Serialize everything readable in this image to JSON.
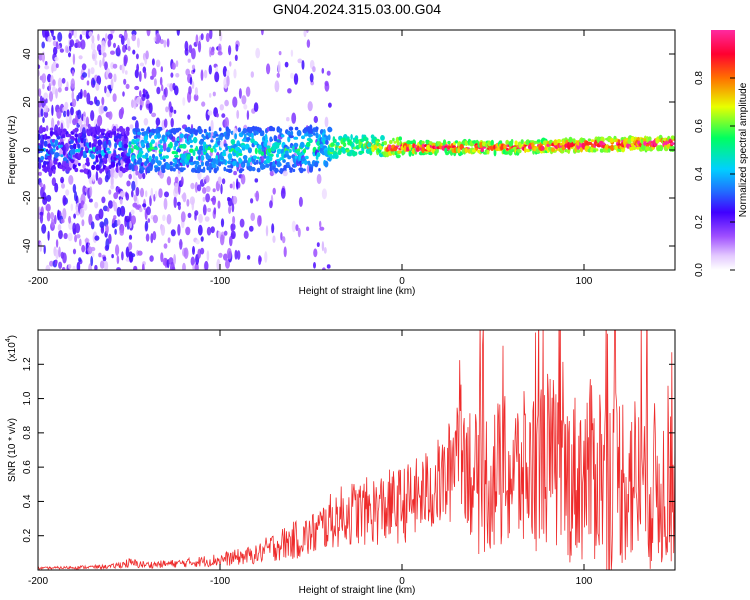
{
  "title": "GN04.2024.315.03.00.G04",
  "colors": {
    "axis": "#000000",
    "snr_line": "#ee2b2b",
    "colormap": [
      "#ffffff",
      "#e8d8ff",
      "#a060ff",
      "#3a00ff",
      "#2060ff",
      "#00c8ff",
      "#00ff80",
      "#f0ff00",
      "#ff6000",
      "#ff0040",
      "#ff2090"
    ]
  },
  "chart_data": [
    {
      "type": "heatmap",
      "name": "spectrogram",
      "xlabel": "Height of straight line (km)",
      "ylabel": "Frequency (Hz)",
      "xlim": [
        -200,
        150
      ],
      "ylim": [
        -50,
        50
      ],
      "xticks": [
        -200,
        -100,
        0,
        100
      ],
      "xtick_labels": [
        "-200",
        "-100",
        "0",
        "100"
      ],
      "yticks": [
        -40,
        -20,
        0,
        20,
        40
      ],
      "ytick_labels": [
        "-40",
        "-20",
        "0",
        "20",
        "40"
      ],
      "colorbar": {
        "label": "Normalized spectral amplitude",
        "range": [
          0,
          1
        ],
        "ticks": [
          0.0,
          0.2,
          0.4,
          0.6,
          0.8
        ],
        "tick_labels": [
          "0.0",
          "0.2",
          "0.4",
          "0.6",
          "0.8"
        ]
      },
      "ridge": {
        "x": [
          -200,
          -150,
          -100,
          -60,
          -40,
          -20,
          0,
          50,
          100,
          150
        ],
        "y": [
          0,
          0,
          0,
          0,
          1,
          2,
          1,
          1,
          2,
          3
        ]
      },
      "grid": false
    },
    {
      "type": "line",
      "name": "snr",
      "xlabel": "Height of straight line (km)",
      "ylabel": "SNR (10 * v/v)",
      "scale_label": "(x10",
      "scale_exp": "4",
      "scale_close": ")",
      "xlim": [
        -200,
        150
      ],
      "ylim": [
        0,
        14000
      ],
      "xticks": [
        -200,
        -100,
        0,
        100
      ],
      "xtick_labels": [
        "-200",
        "-100",
        "0",
        "100"
      ],
      "yticks": [
        2000,
        4000,
        6000,
        8000,
        10000,
        12000
      ],
      "ytick_labels": [
        "0.2",
        "0.4",
        "0.6",
        "0.8",
        "1.0",
        "1.2"
      ],
      "envelope_x": [
        -200,
        -160,
        -150,
        -140,
        -120,
        -100,
        -80,
        -70,
        -60,
        -50,
        -40,
        -30,
        -20,
        -10,
        0,
        10,
        20,
        25,
        28,
        30,
        33,
        36,
        40,
        50,
        60,
        70,
        80,
        90,
        100,
        110,
        115,
        120,
        130,
        140,
        150
      ],
      "envelope_y": [
        100,
        200,
        400,
        300,
        400,
        600,
        900,
        1400,
        1700,
        2000,
        2800,
        3300,
        3400,
        3600,
        3800,
        4300,
        5000,
        5300,
        6500,
        8300,
        7200,
        6500,
        5000,
        5400,
        5600,
        5700,
        6600,
        5300,
        5600,
        6000,
        4800,
        5600,
        5200,
        4800,
        4600
      ],
      "spread_y": [
        60,
        120,
        300,
        200,
        250,
        400,
        550,
        900,
        1100,
        1300,
        1600,
        1900,
        2000,
        2200,
        2300,
        2400,
        2700,
        3000,
        3500,
        3500,
        3600,
        4000,
        4200,
        4500,
        4700,
        4800,
        5200,
        4900,
        5300,
        5600,
        6300,
        5400,
        5200,
        5000,
        4200
      ],
      "grid": false
    }
  ]
}
